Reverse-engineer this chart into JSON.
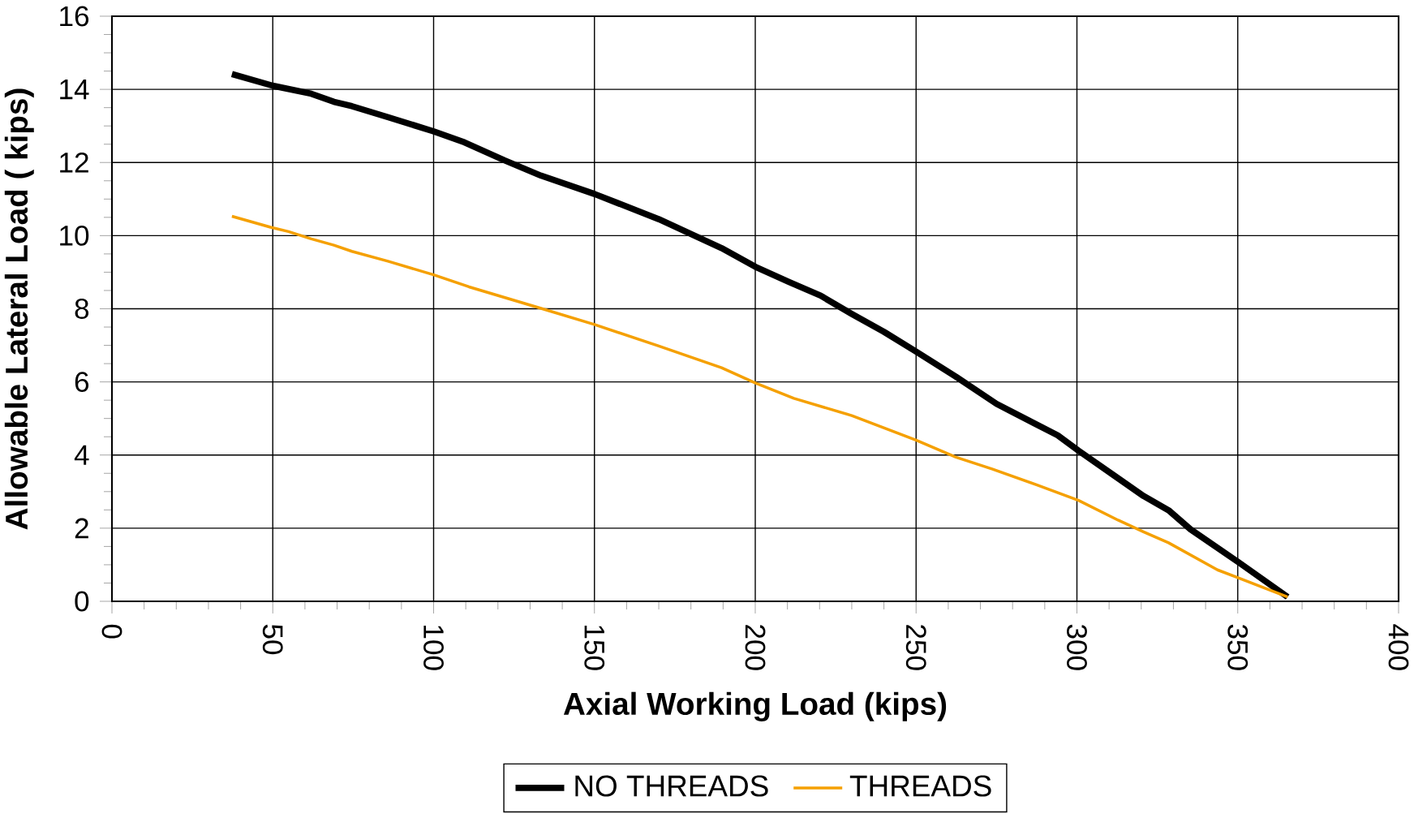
{
  "chart_data": {
    "type": "line",
    "xlabel": "Axial Working Load (kips)",
    "ylabel": "Allowable Lateral Load ( kips)",
    "xlim": [
      0,
      400
    ],
    "ylim": [
      0,
      16
    ],
    "xticks": [
      0,
      50,
      100,
      150,
      200,
      250,
      300,
      350,
      400
    ],
    "yticks": [
      0,
      2,
      4,
      6,
      8,
      10,
      12,
      14,
      16
    ],
    "grid": true,
    "legend": "bottom",
    "series": [
      {
        "name": "NO THREADS",
        "color": "#000000",
        "x": [
          37.3,
          50,
          62,
          69,
          74.6,
          85.8,
          100,
          109.6,
          122,
          133.4,
          150,
          170,
          189.5,
          200,
          210.5,
          220.3,
          230,
          240,
          250,
          262.4,
          275,
          294,
          300.5,
          311.4,
          320.7,
          328.5,
          335.3,
          350.7,
          365.5
        ],
        "values": [
          14.42,
          14.1,
          13.88,
          13.66,
          13.54,
          13.24,
          12.85,
          12.55,
          12.06,
          11.64,
          11.14,
          10.45,
          9.66,
          9.15,
          8.73,
          8.36,
          7.86,
          7.37,
          6.83,
          6.14,
          5.4,
          4.54,
          4.12,
          3.45,
          2.88,
          2.49,
          1.97,
          1.04,
          0.12
        ]
      },
      {
        "name": "THREADS",
        "color": "#f5a000",
        "x": [
          37.3,
          49.3,
          54.9,
          62,
          69,
          74.6,
          85.8,
          100,
          111,
          133.4,
          150,
          170,
          189.5,
          200,
          212,
          230,
          250,
          262.4,
          273.6,
          287.6,
          300.5,
          312.8,
          320.7,
          328.5,
          343.7,
          365.5
        ],
        "values": [
          10.53,
          10.23,
          10.11,
          9.91,
          9.74,
          9.57,
          9.3,
          8.93,
          8.6,
          8.01,
          7.57,
          6.98,
          6.39,
          5.97,
          5.55,
          5.08,
          4.41,
          3.94,
          3.62,
          3.18,
          2.76,
          2.22,
          1.9,
          1.6,
          0.86,
          0.12
        ]
      }
    ]
  }
}
